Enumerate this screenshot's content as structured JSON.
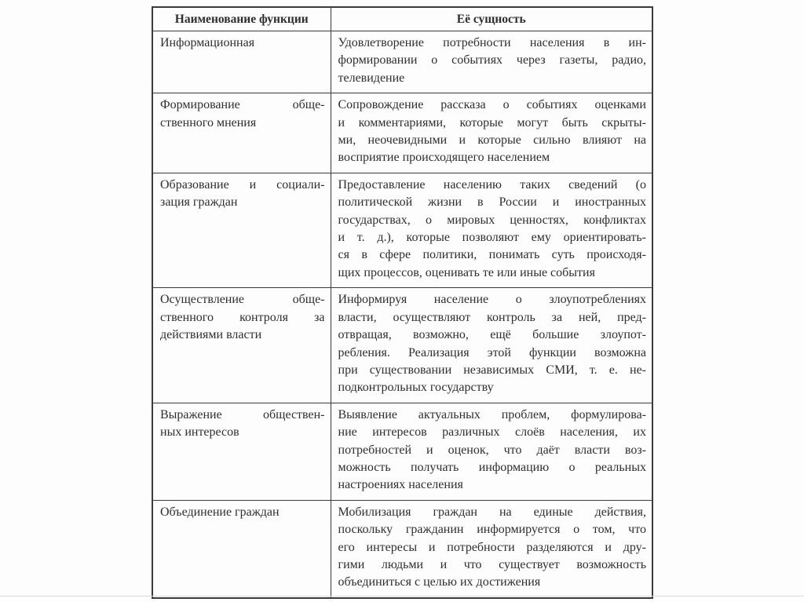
{
  "colors": {
    "background": "#fdfdfd",
    "table_border": "#3b3b3b",
    "text": "#2e2e2e",
    "slide_bottom_edge": "#d9d9d9"
  },
  "table": {
    "header": {
      "col1": "Наименование функции",
      "col2": "Её сущность"
    },
    "rows": [
      {
        "name": [
          "Информационная"
        ],
        "essence": [
          "Удовлетворение потребности населения в ин-",
          "формировании о событиях через газеты, радио,",
          "телевидение"
        ]
      },
      {
        "name": [
          "Формирование обще-",
          "ственного мнения"
        ],
        "essence": [
          "Сопровождение рассказа о событиях оценками",
          "и комментариями, которые могут быть скрыты-",
          "ми, неочевидными и которые сильно влияют на",
          "восприятие происходящего населением"
        ]
      },
      {
        "name": [
          "Образование и социали-",
          "зация граждан"
        ],
        "essence": [
          "Предоставление населению таких сведений (о",
          "политической жизни в России и иностранных",
          "государствах, о мировых ценностях, конфликтах",
          "и т. д.), которые позволяют ему ориентировать-",
          "ся в сфере политики, понимать суть происходя-",
          "щих процессов, оценивать те или иные события"
        ]
      },
      {
        "name": [
          "Осуществление обще-",
          "ственного контроля за",
          "действиями власти"
        ],
        "essence": [
          "Информируя население о злоупотреблениях",
          "власти, осуществляют контроль за ней, пред-",
          "отвращая, возможно, ещё большие злоупот-",
          "ребления. Реализация этой функции возможна",
          "при существовании независимых СМИ, т. е. не-",
          "подконтрольных государству"
        ]
      },
      {
        "name": [
          "Выражение обществен-",
          "ных интересов"
        ],
        "essence": [
          "Выявление актуальных проблем, формулирова-",
          "ние интересов различных слоёв населения, их",
          "потребностей и оценок, что даёт власти воз-",
          "можность получать информацию о реальных",
          "настроениях населения"
        ]
      },
      {
        "name": [
          "Объединение граждан"
        ],
        "essence": [
          "Мобилизация граждан на единые действия,",
          "поскольку гражданин информируется о том, что",
          "его интересы и потребности разделяются и дру-",
          "гими людьми и что существует возможность",
          "объединиться с целью их достижения"
        ]
      }
    ]
  }
}
